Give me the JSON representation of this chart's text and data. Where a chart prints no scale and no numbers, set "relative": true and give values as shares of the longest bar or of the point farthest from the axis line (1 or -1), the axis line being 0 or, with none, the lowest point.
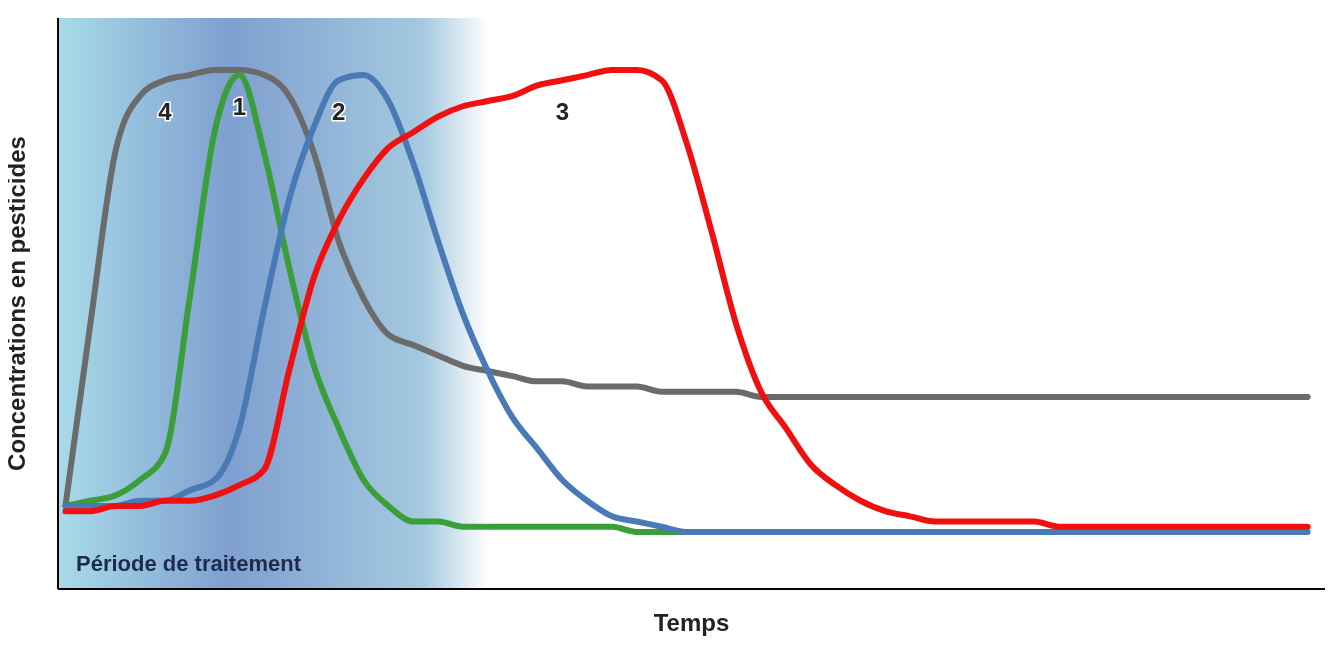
{
  "chart_data": {
    "type": "line",
    "relative": true,
    "xlabel": "Temps",
    "ylabel": "Concentrations en pesticides",
    "categories": [
      null,
      null,
      null,
      null,
      null,
      null,
      null,
      null,
      null,
      null,
      null,
      null,
      null,
      null,
      null,
      null,
      null,
      null,
      null,
      null,
      null,
      null,
      null,
      null,
      null,
      null,
      null,
      null,
      null,
      null,
      null,
      null,
      null,
      null,
      null,
      null,
      null,
      null,
      null,
      null,
      null,
      null,
      null,
      null,
      null,
      null,
      null,
      null,
      null,
      null,
      null
    ],
    "series": [
      {
        "name": "4",
        "color": "#6b6b6b",
        "values": [
          0.16,
          0.51,
          0.84,
          0.95,
          0.98,
          0.99,
          1,
          1,
          0.99,
          0.95,
          0.84,
          0.67,
          0.56,
          0.49,
          0.47,
          0.45,
          0.43,
          0.42,
          0.41,
          0.4,
          0.4,
          0.39,
          0.39,
          0.39,
          0.38,
          0.38,
          0.38,
          0.38,
          0.37,
          0.37,
          0.37,
          0.37,
          0.37,
          0.37,
          0.37,
          0.37,
          0.37,
          0.37,
          0.37,
          0.37,
          0.37,
          0.37,
          0.37,
          0.37,
          0.37,
          0.37,
          0.37,
          0.37,
          0.37,
          0.37,
          0.37
        ]
      },
      {
        "name": "1",
        "color": "#3a9e3a",
        "values": [
          0.16,
          0.17,
          0.18,
          0.21,
          0.26,
          0.56,
          0.88,
          0.99,
          0.84,
          0.62,
          0.43,
          0.31,
          0.21,
          0.16,
          0.13,
          0.13,
          0.12,
          0.12,
          0.12,
          0.12,
          0.12,
          0.12,
          0.12,
          0.11,
          0.11,
          0.11,
          null,
          null,
          null,
          null,
          null,
          null,
          null,
          null,
          null,
          null,
          null,
          null,
          null,
          null,
          null,
          null,
          null,
          null,
          null,
          null,
          null,
          null,
          null,
          null,
          null
        ]
      },
      {
        "name": "2",
        "color": "#4a7ab5",
        "values": [
          0.16,
          0.16,
          0.16,
          0.17,
          0.17,
          0.19,
          0.21,
          0.31,
          0.54,
          0.75,
          0.89,
          0.98,
          0.99,
          0.94,
          0.82,
          0.67,
          0.53,
          0.42,
          0.33,
          0.27,
          0.21,
          0.17,
          0.14,
          0.13,
          0.12,
          0.11,
          0.11,
          0.11,
          0.11,
          0.11,
          0.11,
          0.11,
          0.11,
          0.11,
          0.11,
          0.11,
          0.11,
          0.11,
          0.11,
          0.11,
          0.11,
          0.11,
          0.11,
          0.11,
          0.11,
          0.11,
          0.11,
          0.11,
          0.11,
          0.11,
          0.11
        ]
      },
      {
        "name": "3",
        "color": "#f01010",
        "values": [
          0.15,
          0.15,
          0.16,
          0.16,
          0.17,
          0.17,
          0.18,
          0.2,
          0.23,
          0.42,
          0.6,
          0.71,
          0.79,
          0.85,
          0.88,
          0.91,
          0.93,
          0.94,
          0.95,
          0.97,
          0.98,
          0.99,
          1,
          1,
          0.98,
          0.86,
          0.69,
          0.51,
          0.38,
          0.31,
          0.24,
          0.2,
          0.17,
          0.15,
          0.14,
          0.13,
          0.13,
          0.13,
          0.13,
          0.13,
          0.12,
          0.12,
          0.12,
          0.12,
          0.12,
          0.12,
          0.12,
          0.12,
          0.12,
          0.12,
          0.12
        ]
      }
    ],
    "annotations": [
      "Période de traitement"
    ],
    "legend": false,
    "grid": false,
    "marker": "none",
    "line_style": "solid"
  }
}
